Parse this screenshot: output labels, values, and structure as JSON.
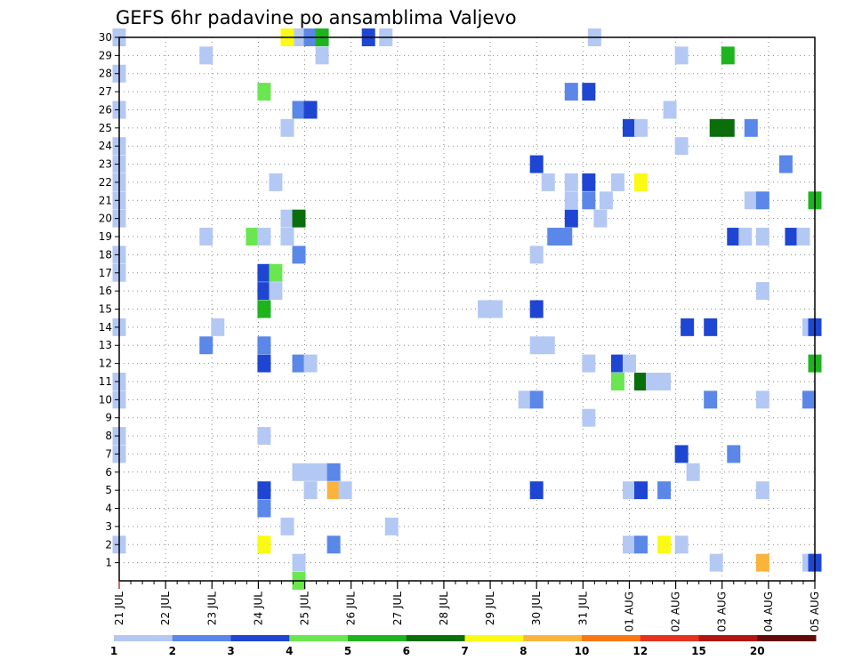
{
  "chart_data": {
    "type": "heatmap",
    "title": "GEFS 6hr padavine po ansamblima Valjevo",
    "x_ticks": [
      "21 JUL",
      "22 JUL",
      "23 JUL",
      "24 JUL",
      "25 JUL",
      "26 JUL",
      "27 JUL",
      "28 JUL",
      "29 JUL",
      "30 JUL",
      "31 JUL",
      "01 AUG",
      "02 AUG",
      "03 AUG",
      "04 AUG",
      "05 AUG"
    ],
    "y_ticks": [
      1,
      2,
      3,
      4,
      5,
      6,
      7,
      8,
      9,
      10,
      11,
      12,
      13,
      14,
      15,
      16,
      17,
      18,
      19,
      20,
      21,
      22,
      23,
      24,
      25,
      26,
      27,
      28,
      29,
      30
    ],
    "xlim": [
      0,
      60
    ],
    "ylim": [
      0,
      30
    ],
    "grid": true,
    "levels": [
      "1",
      "2",
      "3",
      "4",
      "5",
      "6",
      "7",
      "8",
      "10",
      "12",
      "15",
      "20"
    ],
    "colors": [
      "#b4c8f4",
      "#5a87e8",
      "#1e46d2",
      "#6ae650",
      "#1eb41e",
      "#0a6e0a",
      "#fafa14",
      "#fab43c",
      "#fa7814",
      "#e6321e",
      "#b41414",
      "#640a0a"
    ],
    "cells": [
      [
        0,
        30,
        1
      ],
      [
        15.5,
        30,
        1
      ],
      [
        16.5,
        30,
        2
      ],
      [
        17.5,
        30,
        5
      ],
      [
        14.5,
        30,
        7
      ],
      [
        21.5,
        30,
        3
      ],
      [
        23,
        30,
        1
      ],
      [
        41,
        30,
        1
      ],
      [
        7.5,
        29,
        1
      ],
      [
        17.5,
        29,
        1
      ],
      [
        48.5,
        29,
        1
      ],
      [
        52.5,
        29,
        5
      ],
      [
        0,
        28,
        1
      ],
      [
        12.5,
        27,
        4
      ],
      [
        39,
        27,
        2
      ],
      [
        40.5,
        27,
        3
      ],
      [
        0,
        26,
        1
      ],
      [
        15.5,
        26,
        2
      ],
      [
        16.5,
        26,
        3
      ],
      [
        47.5,
        26,
        1
      ],
      [
        14.5,
        25,
        1
      ],
      [
        44,
        25,
        3
      ],
      [
        45,
        25,
        1
      ],
      [
        51.5,
        25,
        6
      ],
      [
        52.5,
        25,
        6
      ],
      [
        54.5,
        25,
        2
      ],
      [
        0,
        24,
        1
      ],
      [
        48.5,
        24,
        1
      ],
      [
        0,
        23,
        1
      ],
      [
        36,
        23,
        3
      ],
      [
        57.5,
        23,
        2
      ],
      [
        0,
        22,
        1
      ],
      [
        13.5,
        22,
        1
      ],
      [
        37,
        22,
        1
      ],
      [
        39,
        22,
        1
      ],
      [
        40.5,
        22,
        3
      ],
      [
        43,
        22,
        1
      ],
      [
        45,
        22,
        7
      ],
      [
        0,
        21,
        1
      ],
      [
        39,
        21,
        1
      ],
      [
        40.5,
        21,
        2
      ],
      [
        42,
        21,
        1
      ],
      [
        54.5,
        21,
        1
      ],
      [
        55.5,
        21,
        2
      ],
      [
        60,
        21,
        5
      ],
      [
        0,
        20,
        1
      ],
      [
        14.5,
        20,
        1
      ],
      [
        15.5,
        20,
        6
      ],
      [
        39,
        20,
        3
      ],
      [
        41.5,
        20,
        1
      ],
      [
        7.5,
        19,
        1
      ],
      [
        11.5,
        19,
        4
      ],
      [
        12.5,
        19,
        1
      ],
      [
        14.5,
        19,
        1
      ],
      [
        37.5,
        19,
        2
      ],
      [
        38.5,
        19,
        2
      ],
      [
        53,
        19,
        3
      ],
      [
        54,
        19,
        1
      ],
      [
        55.5,
        19,
        1
      ],
      [
        58,
        19,
        3
      ],
      [
        59,
        19,
        1
      ],
      [
        0,
        18,
        1
      ],
      [
        15.5,
        18,
        2
      ],
      [
        36,
        18,
        1
      ],
      [
        0,
        17,
        1
      ],
      [
        12.5,
        17,
        3
      ],
      [
        13.5,
        17,
        4
      ],
      [
        12.5,
        16,
        3
      ],
      [
        13.5,
        16,
        1
      ],
      [
        55.5,
        16,
        1
      ],
      [
        12.5,
        15,
        5
      ],
      [
        31.5,
        15,
        1
      ],
      [
        32.5,
        15,
        1
      ],
      [
        36,
        15,
        3
      ],
      [
        0,
        14,
        1
      ],
      [
        8.5,
        14,
        1
      ],
      [
        49,
        14,
        3
      ],
      [
        51,
        14,
        3
      ],
      [
        59.5,
        14,
        1
      ],
      [
        60,
        14,
        3
      ],
      [
        7.5,
        13,
        2
      ],
      [
        12.5,
        13,
        2
      ],
      [
        36,
        13,
        1
      ],
      [
        37,
        13,
        1
      ],
      [
        12.5,
        12,
        3
      ],
      [
        15.5,
        12,
        2
      ],
      [
        16.5,
        12,
        1
      ],
      [
        40.5,
        12,
        1
      ],
      [
        43,
        12,
        3
      ],
      [
        44,
        12,
        1
      ],
      [
        60,
        12,
        5
      ],
      [
        0,
        11,
        1
      ],
      [
        43,
        11,
        4
      ],
      [
        45,
        11,
        6
      ],
      [
        46,
        11,
        1
      ],
      [
        47,
        11,
        1
      ],
      [
        0,
        10,
        1
      ],
      [
        35,
        10,
        1
      ],
      [
        36,
        10,
        2
      ],
      [
        51,
        10,
        2
      ],
      [
        55.5,
        10,
        1
      ],
      [
        59.5,
        10,
        2
      ],
      [
        40.5,
        9,
        1
      ],
      [
        0,
        8,
        1
      ],
      [
        12.5,
        8,
        1
      ],
      [
        0,
        7,
        1
      ],
      [
        48.5,
        7,
        3
      ],
      [
        53,
        7,
        2
      ],
      [
        15.5,
        6,
        1
      ],
      [
        16.5,
        6,
        1
      ],
      [
        17.5,
        6,
        1
      ],
      [
        18.5,
        6,
        2
      ],
      [
        49.5,
        6,
        1
      ],
      [
        12.5,
        5,
        3
      ],
      [
        16.5,
        5,
        1
      ],
      [
        18.5,
        5,
        8
      ],
      [
        19.5,
        5,
        1
      ],
      [
        36,
        5,
        3
      ],
      [
        44,
        5,
        1
      ],
      [
        45,
        5,
        3
      ],
      [
        47,
        5,
        2
      ],
      [
        55.5,
        5,
        1
      ],
      [
        12.5,
        4,
        2
      ],
      [
        14.5,
        3,
        1
      ],
      [
        23.5,
        3,
        1
      ],
      [
        0,
        2,
        1
      ],
      [
        12.5,
        2,
        7
      ],
      [
        18.5,
        2,
        2
      ],
      [
        44,
        2,
        1
      ],
      [
        45,
        2,
        2
      ],
      [
        47,
        2,
        7
      ],
      [
        48.5,
        2,
        1
      ],
      [
        15.5,
        1,
        1
      ],
      [
        51.5,
        1,
        1
      ],
      [
        55.5,
        1,
        8
      ],
      [
        59.5,
        1,
        1
      ],
      [
        60,
        1,
        3
      ],
      [
        15.5,
        0,
        4
      ]
    ]
  }
}
